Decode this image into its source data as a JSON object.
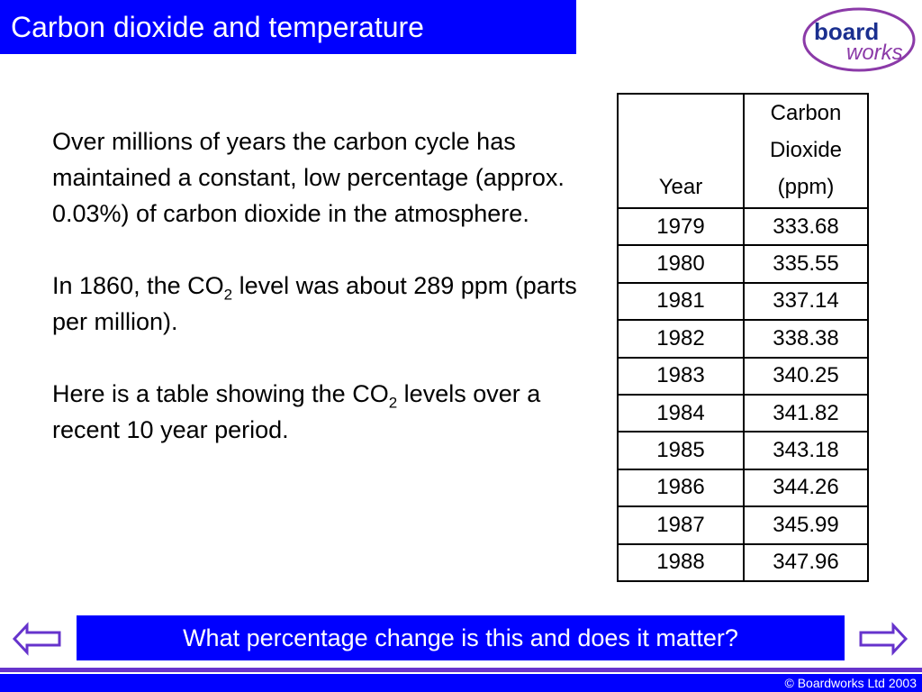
{
  "header": {
    "title": "Carbon dioxide and temperature",
    "logo": {
      "word1": "board",
      "word2": "works"
    }
  },
  "body": {
    "paragraphs": [
      {
        "parts": [
          "Over millions of years the carbon cycle has maintained a constant, low percentage (approx. 0.03%) of carbon dioxide in the atmosphere."
        ]
      },
      {
        "parts": [
          "In 1860, the CO",
          "2",
          " level was about 289 ppm (parts per million)."
        ]
      },
      {
        "parts": [
          "Here is a table showing the  CO",
          "2",
          " levels over a recent 10  year period."
        ]
      }
    ]
  },
  "table": {
    "columns": [
      "Year",
      "Carbon Dioxide (ppm)"
    ],
    "rows": [
      [
        1979,
        333.68
      ],
      [
        1980,
        335.55
      ],
      [
        1981,
        337.14
      ],
      [
        1982,
        338.38
      ],
      [
        1983,
        340.25
      ],
      [
        1984,
        341.82
      ],
      [
        1985,
        343.18
      ],
      [
        1986,
        344.26
      ],
      [
        1987,
        345.99
      ],
      [
        1988,
        347.96
      ]
    ]
  },
  "question": "What percentage change is this and does it matter?",
  "footer": "© Boardworks Ltd 2003"
}
